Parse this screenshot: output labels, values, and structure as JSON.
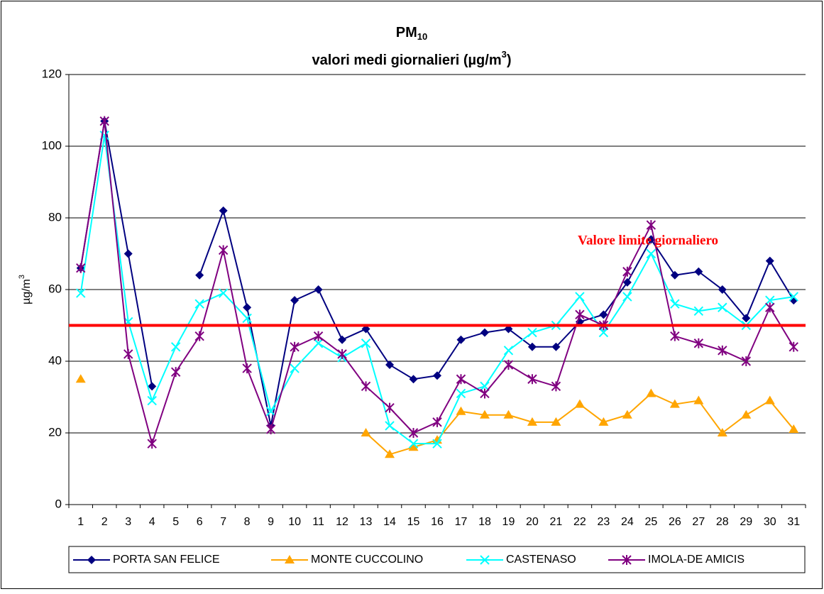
{
  "chart_data": {
    "type": "line",
    "title": {
      "main": "PM",
      "sub": "10"
    },
    "subtitle": {
      "text": "valori medi giornalieri (µg/m",
      "sup": "3",
      "end": ")"
    },
    "y_label": {
      "text": "µg/m",
      "sup": "3"
    },
    "categories": [
      "1",
      "2",
      "3",
      "4",
      "5",
      "6",
      "7",
      "8",
      "9",
      "10",
      "11",
      "12",
      "13",
      "14",
      "15",
      "16",
      "17",
      "18",
      "19",
      "20",
      "21",
      "22",
      "23",
      "24",
      "25",
      "26",
      "27",
      "28",
      "29",
      "30",
      "31"
    ],
    "ylim": [
      0,
      120
    ],
    "yticks": [
      0,
      20,
      40,
      60,
      80,
      100,
      120
    ],
    "grid": true,
    "legend": "bottom",
    "limit_line": {
      "value": 50,
      "label": "Valore limite giornaliero",
      "color": "#ff0000"
    },
    "series": [
      {
        "name": "PORTA SAN FELICE",
        "color": "#000080",
        "marker": "diamond",
        "values": [
          66,
          107,
          70,
          33,
          null,
          64,
          82,
          55,
          22,
          57,
          60,
          46,
          49,
          39,
          35,
          36,
          46,
          48,
          49,
          44,
          44,
          51,
          53,
          62,
          74,
          64,
          65,
          60,
          52,
          68,
          57
        ]
      },
      {
        "name": "MONTE CUCCOLINO",
        "color": "#ffa500",
        "marker": "triangle",
        "values": [
          35,
          null,
          null,
          null,
          null,
          null,
          null,
          null,
          null,
          null,
          null,
          null,
          20,
          14,
          16,
          18,
          26,
          25,
          25,
          23,
          23,
          28,
          23,
          25,
          31,
          28,
          29,
          20,
          25,
          29,
          21
        ]
      },
      {
        "name": "CASTENASO",
        "color": "#00ffff",
        "marker": "x",
        "values": [
          59,
          103,
          51,
          29,
          44,
          56,
          59,
          52,
          26,
          38,
          45,
          41,
          45,
          22,
          17,
          17,
          31,
          33,
          43,
          48,
          50,
          58,
          48,
          58,
          70,
          56,
          54,
          55,
          50,
          57,
          58
        ]
      },
      {
        "name": "IMOLA-DE AMICIS",
        "color": "#800080",
        "marker": "star",
        "values": [
          66,
          107,
          42,
          17,
          37,
          47,
          71,
          38,
          21,
          44,
          47,
          42,
          33,
          27,
          20,
          23,
          35,
          31,
          39,
          35,
          33,
          53,
          50,
          65,
          78,
          47,
          45,
          43,
          40,
          55,
          44
        ]
      }
    ]
  }
}
